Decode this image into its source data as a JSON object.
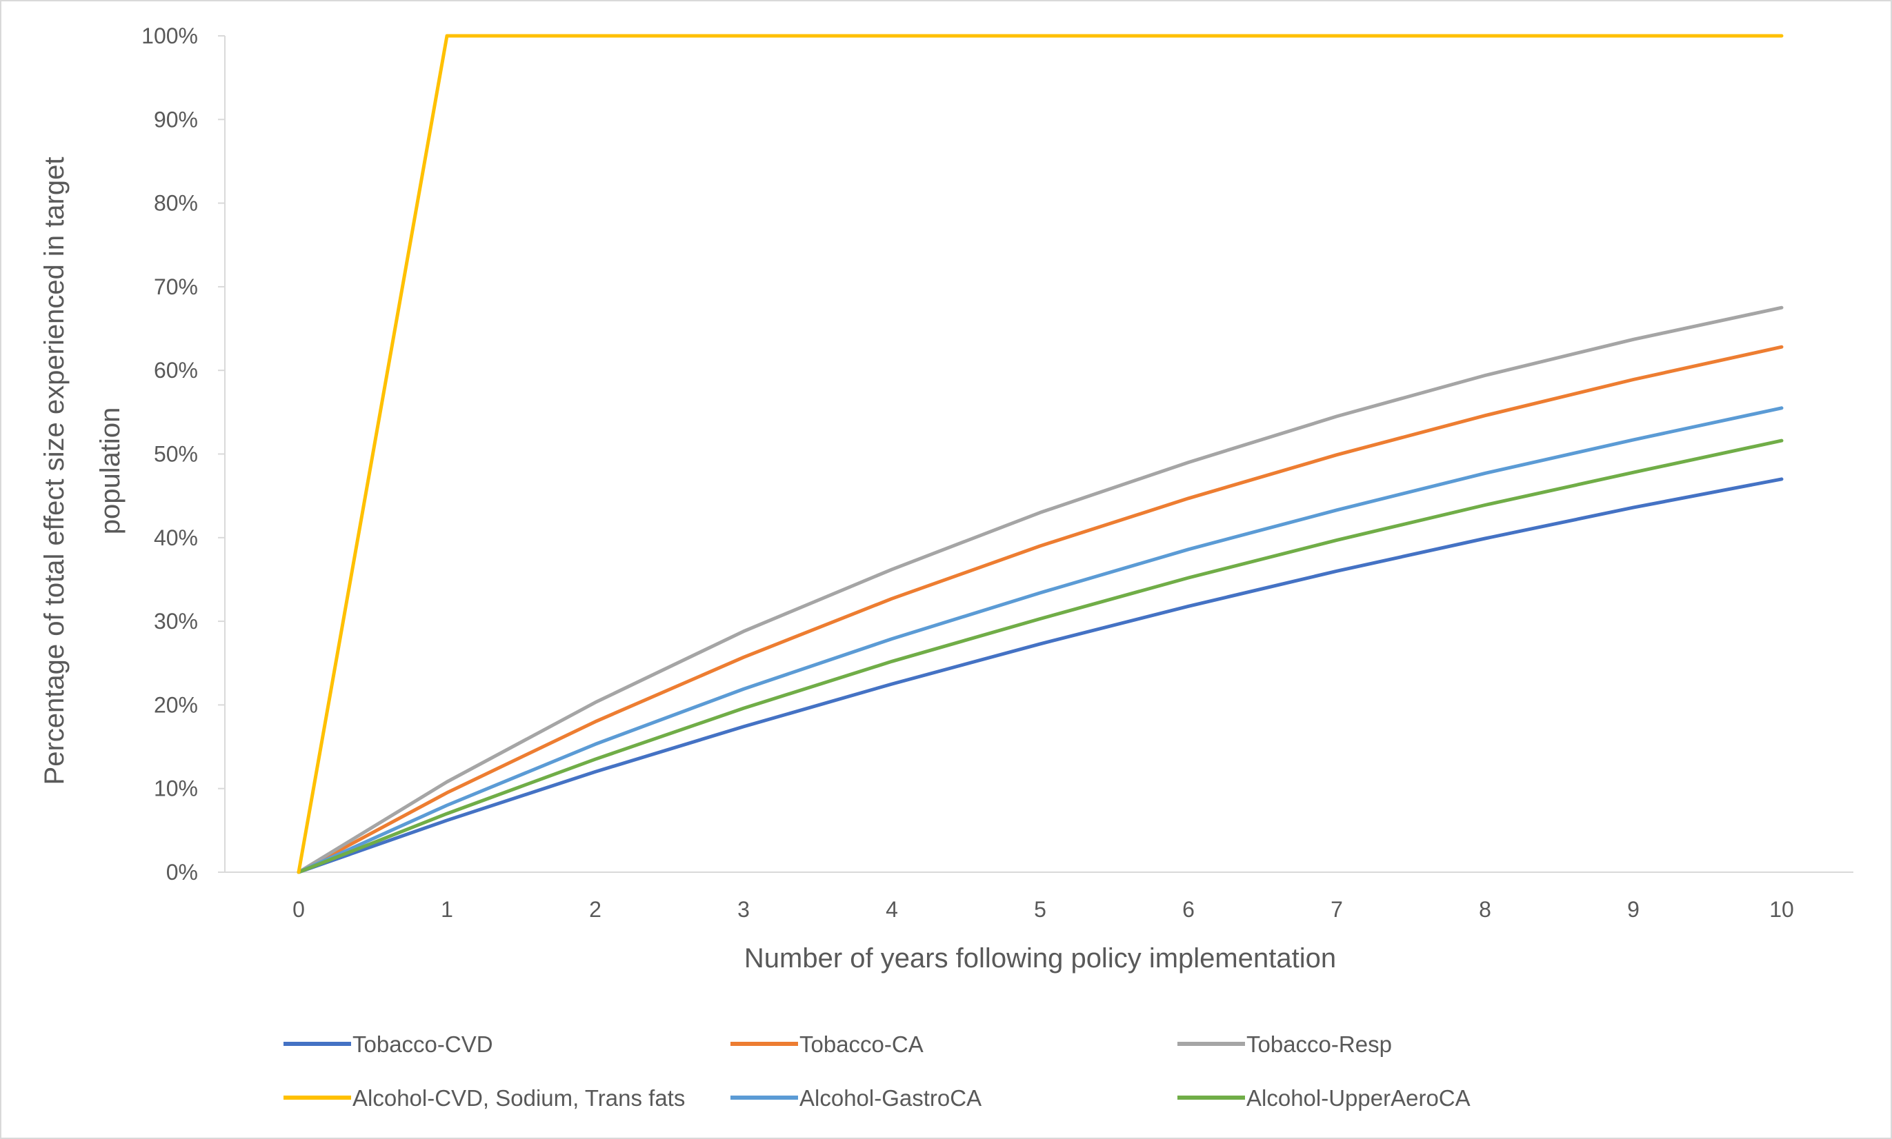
{
  "chart_data": {
    "type": "line",
    "title": "",
    "xlabel": "Number of years following policy implementation",
    "ylabel_lines": [
      "Percentage of total effect size experienced in target",
      "population"
    ],
    "x": [
      0,
      1,
      2,
      3,
      4,
      5,
      6,
      7,
      8,
      9,
      10
    ],
    "x_tick_labels": [
      "0",
      "1",
      "2",
      "3",
      "4",
      "5",
      "6",
      "7",
      "8",
      "9",
      "10"
    ],
    "ylim": [
      0,
      1
    ],
    "y_ticks": [
      0,
      0.1,
      0.2,
      0.3,
      0.4,
      0.5,
      0.6,
      0.7,
      0.8,
      0.9,
      1.0
    ],
    "y_tick_labels": [
      "0%",
      "10%",
      "20%",
      "30%",
      "40%",
      "50%",
      "60%",
      "70%",
      "80%",
      "90%",
      "100%"
    ],
    "grid": false,
    "legend_position": "bottom",
    "series": [
      {
        "name": "Tobacco-CVD",
        "color": "#4472C4",
        "values": [
          0,
          0.062,
          0.12,
          0.174,
          0.225,
          0.273,
          0.318,
          0.36,
          0.399,
          0.436,
          0.47
        ]
      },
      {
        "name": "Tobacco-CA",
        "color": "#ED7D31",
        "values": [
          0,
          0.095,
          0.18,
          0.257,
          0.327,
          0.39,
          0.447,
          0.499,
          0.546,
          0.589,
          0.628
        ]
      },
      {
        "name": "Tobacco-Resp",
        "color": "#A5A5A5",
        "values": [
          0,
          0.108,
          0.203,
          0.288,
          0.362,
          0.43,
          0.49,
          0.545,
          0.594,
          0.637,
          0.675
        ]
      },
      {
        "name": "Alcohol-CVD, Sodium, Trans fats",
        "color": "#FFC000",
        "values": [
          0,
          1,
          1,
          1,
          1,
          1,
          1,
          1,
          1,
          1,
          1
        ]
      },
      {
        "name": "Alcohol-GastroCA",
        "color": "#5B9BD5",
        "values": [
          0,
          0.08,
          0.153,
          0.219,
          0.279,
          0.334,
          0.386,
          0.433,
          0.477,
          0.517,
          0.555
        ]
      },
      {
        "name": "Alcohol-UpperAeroCA",
        "color": "#70AD47",
        "values": [
          0,
          0.07,
          0.135,
          0.196,
          0.252,
          0.303,
          0.352,
          0.397,
          0.439,
          0.478,
          0.516
        ]
      }
    ]
  }
}
